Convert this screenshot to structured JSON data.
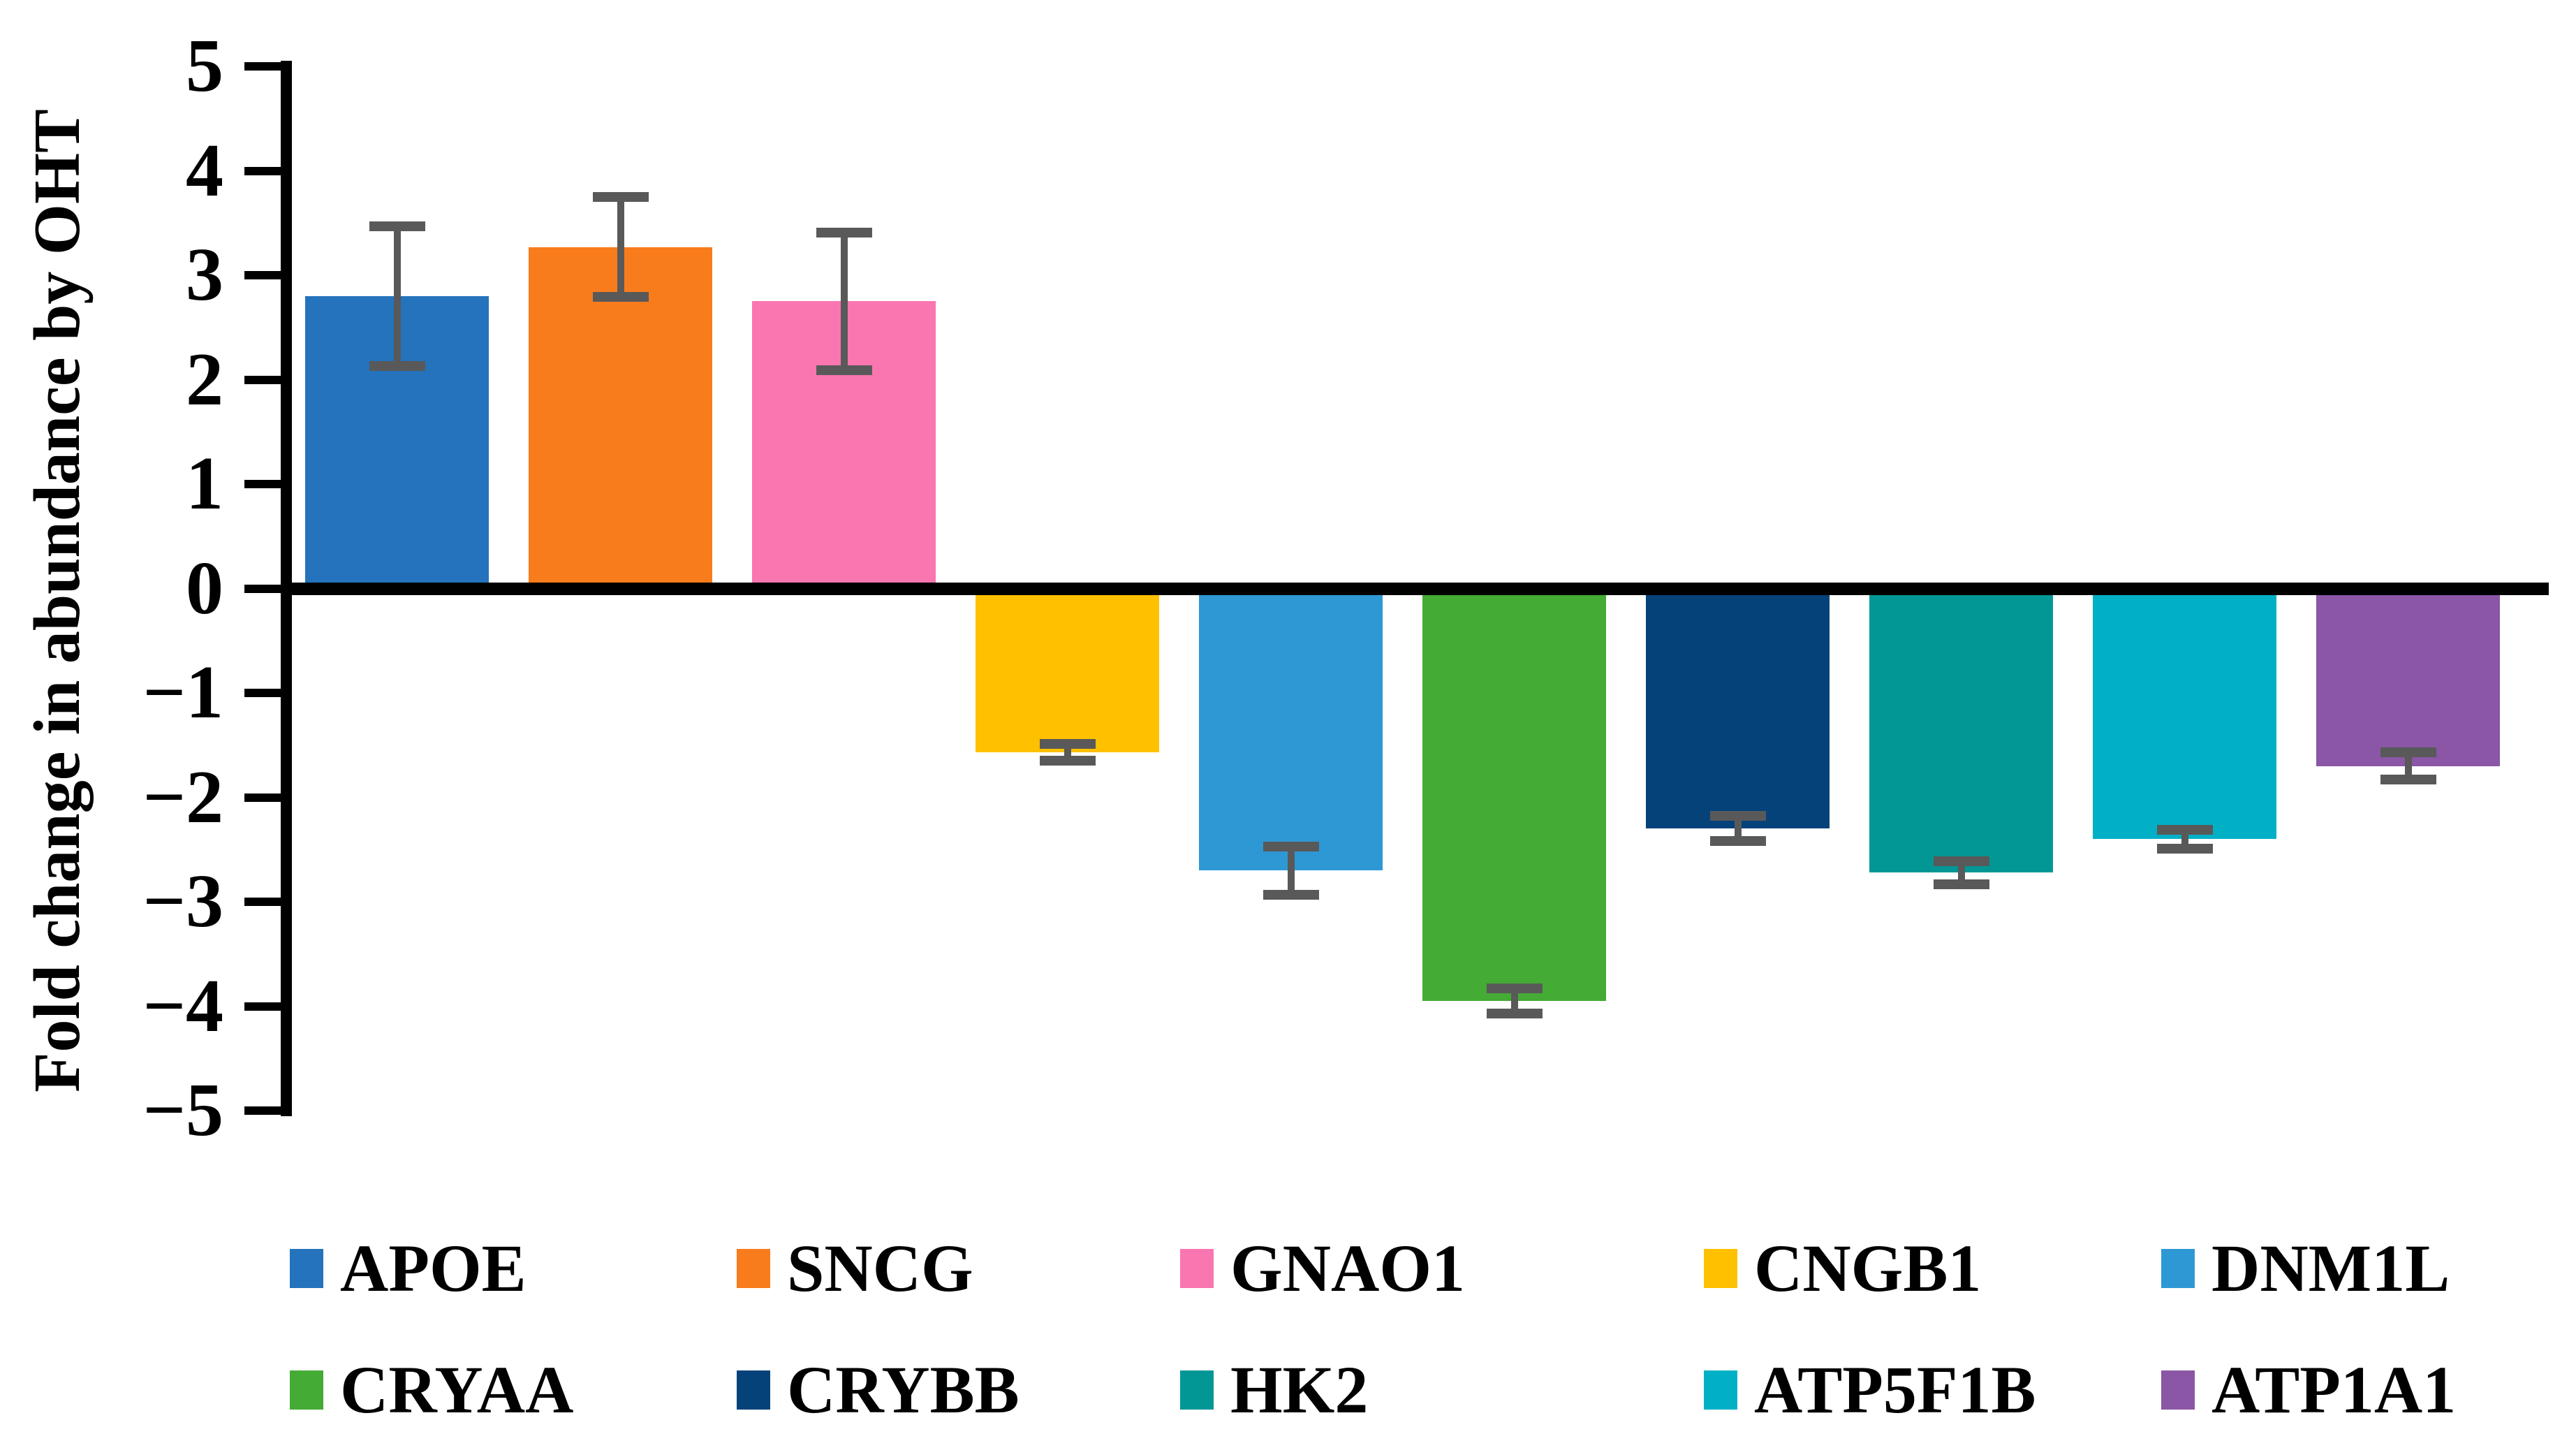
{
  "chart_data": {
    "type": "bar",
    "title": "",
    "xlabel": "",
    "ylabel": "Fold change in abundance by OHT",
    "ylim": [
      -5,
      5
    ],
    "ytick_labels": [
      "5",
      "4",
      "3",
      "2",
      "1",
      "0",
      "−1",
      "−2",
      "−3",
      "−4",
      "−5"
    ],
    "ytick_values": [
      5,
      4,
      3,
      2,
      1,
      0,
      -1,
      -2,
      -3,
      -4,
      -5
    ],
    "grid": false,
    "legend_position": "bottom",
    "axis_color": "#000000",
    "error_bar_color": "#595959",
    "categories": [
      "APOE",
      "SNCG",
      "GNAO1",
      "CNGB1",
      "DNM1L",
      "CRYAA",
      "CRYBB",
      "HK2",
      "ATP5F1B",
      "ATP1A1"
    ],
    "values": [
      2.8,
      3.27,
      2.75,
      -1.57,
      -2.7,
      -3.95,
      -2.3,
      -2.72,
      -2.4,
      -1.7
    ],
    "errors": [
      0.67,
      0.48,
      0.66,
      0.08,
      0.23,
      0.12,
      0.12,
      0.11,
      0.09,
      0.13
    ],
    "colors": [
      "#2473BC",
      "#F97C1C",
      "#F976B1",
      "#FFC000",
      "#2E98D5",
      "#44AB35",
      "#05427A",
      "#029795",
      "#02B0C6",
      "#8A56A5"
    ],
    "legend": [
      "APOE",
      "SNCG",
      "GNAO1",
      "CNGB1",
      "DNM1L",
      "CRYAA",
      "CRYBB",
      "HK2",
      "ATP5F1B",
      "ATP1A1"
    ]
  }
}
